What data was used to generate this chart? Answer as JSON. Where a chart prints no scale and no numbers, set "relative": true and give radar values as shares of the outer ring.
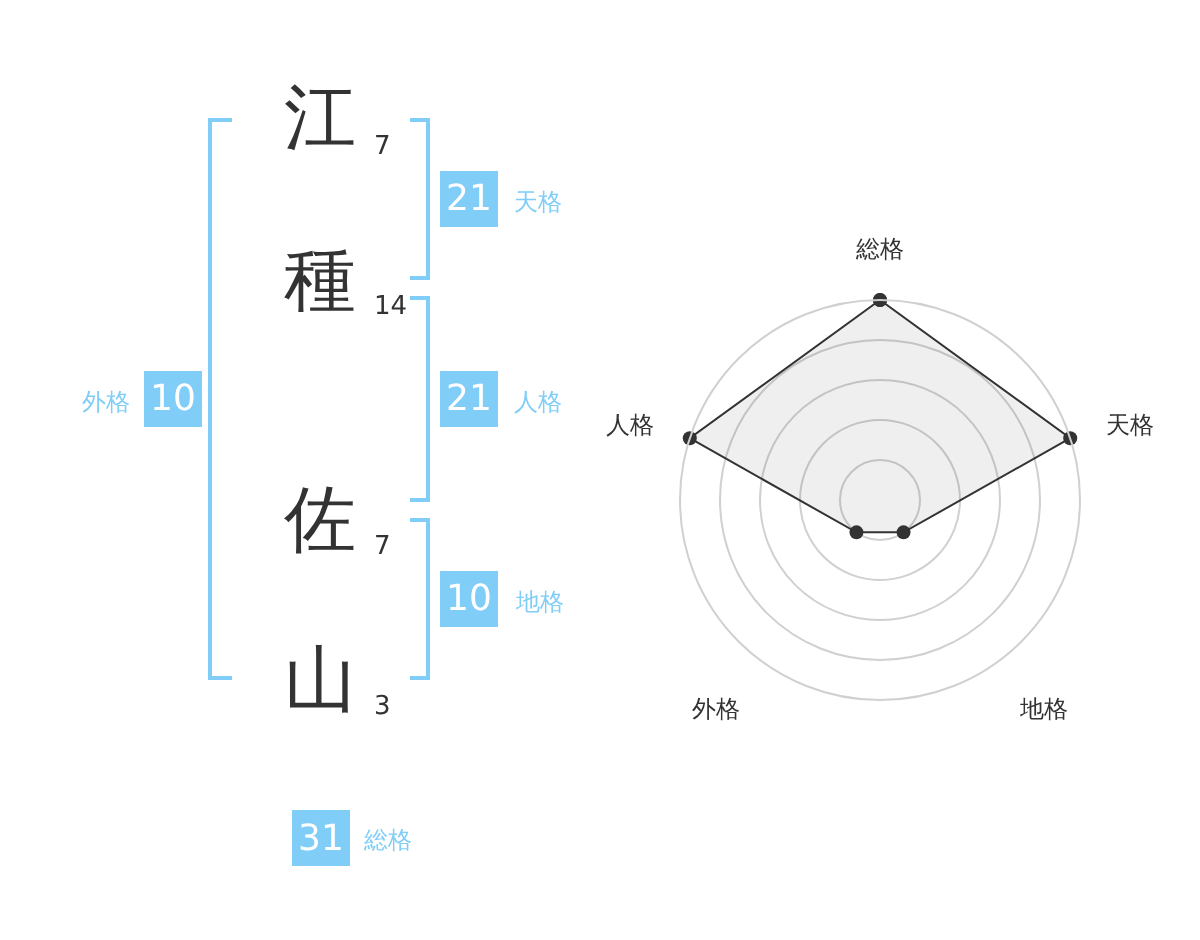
{
  "chart_data": [
    {
      "type": "other",
      "annotations": [
        "江",
        "7",
        "種",
        "14",
        "佐",
        "7",
        "山",
        "3",
        "21",
        "天格",
        "21",
        "人格",
        "10",
        "地格",
        "10",
        "外格",
        "31",
        "総格"
      ],
      "color": "#80cdf8"
    },
    {
      "type": "radar",
      "categories": [
        "総格",
        "天格",
        "地格",
        "外格",
        "人格"
      ],
      "relative": true,
      "grid": true,
      "marker": "circle",
      "line_style": "solid",
      "series": [
        {
          "color": "#333333",
          "values": [
            1,
            1,
            0.2,
            0.2,
            1
          ]
        }
      ]
    }
  ]
}
